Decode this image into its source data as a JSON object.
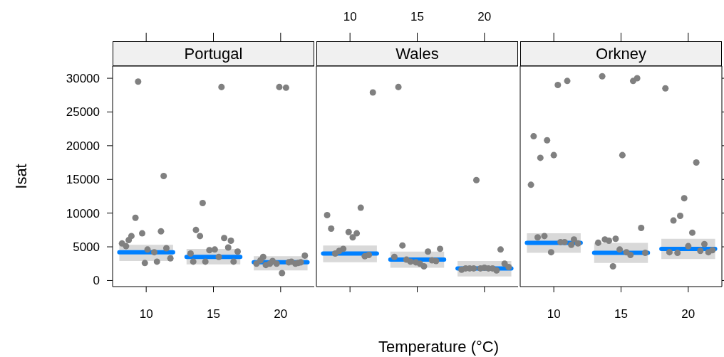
{
  "chart_data": [
    {
      "type": "scatter",
      "title": "Portugal",
      "ylabel": "Isat",
      "xlim": [
        7.5,
        22.5
      ],
      "xticks": [
        10,
        15,
        20
      ],
      "ylim": [
        -900,
        31800
      ],
      "yticks": [
        0,
        5000,
        10000,
        15000,
        20000,
        25000,
        30000
      ],
      "series": [
        {
          "type": "scatter",
          "marker": "circle",
          "color": "#808080",
          "x": [
            9.4,
            8.2,
            8.5,
            8.7,
            8.9,
            9.2,
            9.7,
            9.9,
            10.1,
            10.6,
            10.8,
            11.1,
            11.3,
            11.5,
            11.8,
            13.3,
            13.5,
            13.7,
            14.0,
            14.2,
            14.4,
            14.7,
            15.1,
            15.4,
            15.6,
            15.8,
            16.1,
            16.3,
            16.5,
            16.8,
            18.2,
            18.5,
            18.7,
            18.9,
            19.2,
            19.4,
            19.7,
            19.9,
            20.1,
            20.4,
            20.6,
            20.8,
            21.1,
            21.3,
            21.5,
            21.8
          ],
          "values": [
            29500,
            5500,
            5100,
            6000,
            6600,
            9300,
            7000,
            2600,
            4600,
            4200,
            2800,
            7300,
            15500,
            4800,
            3300,
            4000,
            2800,
            7500,
            6600,
            11500,
            2800,
            4500,
            4600,
            3500,
            28700,
            6300,
            4900,
            5900,
            2800,
            4300,
            2500,
            3000,
            3500,
            2300,
            2500,
            2900,
            2500,
            28700,
            1100,
            28600,
            2700,
            2800,
            2500,
            2600,
            2700,
            3700
          ]
        },
        {
          "type": "line",
          "color": "#0080ff",
          "x": [
            8,
            12
          ],
          "values": [
            4200,
            4200
          ],
          "lower": [
            2900,
            2900
          ],
          "upper": [
            5300,
            5300
          ]
        },
        {
          "type": "line",
          "color": "#0080ff",
          "x": [
            13,
            17
          ],
          "values": [
            3500,
            3500
          ],
          "lower": [
            2400,
            2400
          ],
          "upper": [
            4700,
            4700
          ]
        },
        {
          "type": "line",
          "color": "#0080ff",
          "x": [
            18,
            22
          ],
          "values": [
            2700,
            2700
          ],
          "lower": [
            1500,
            1500
          ],
          "upper": [
            3600,
            3600
          ]
        }
      ]
    },
    {
      "type": "scatter",
      "title": "Wales",
      "xlabel": "Temperature (°C)",
      "xlim": [
        7.5,
        22.5
      ],
      "xticks": [
        10,
        15,
        20
      ],
      "ylim": [
        -900,
        31800
      ],
      "yticks": [
        0,
        5000,
        10000,
        15000,
        20000,
        25000,
        30000
      ],
      "tick_labels": "x",
      "series": [
        {
          "type": "scatter",
          "marker": "circle",
          "color": "#808080",
          "x": [
            8.3,
            8.6,
            8.9,
            9.2,
            9.5,
            9.9,
            10.2,
            10.5,
            10.8,
            11.1,
            11.4,
            11.7,
            13.3,
            13.6,
            13.9,
            14.2,
            14.5,
            14.9,
            15.2,
            15.5,
            15.8,
            16.1,
            16.4,
            16.7,
            18.3,
            18.6,
            18.9,
            19.2,
            19.4,
            19.7,
            20.0,
            20.3,
            20.6,
            20.9,
            21.2,
            21.5,
            21.8
          ],
          "values": [
            9700,
            7700,
            4000,
            4400,
            4700,
            7200,
            6400,
            7000,
            10800,
            3600,
            3800,
            27900,
            3500,
            28700,
            5200,
            3100,
            2800,
            2700,
            2500,
            2100,
            4300,
            3000,
            2900,
            4700,
            1600,
            1800,
            1800,
            1800,
            14900,
            1800,
            1900,
            1800,
            1800,
            1500,
            4600,
            2500,
            2000
          ]
        },
        {
          "type": "line",
          "color": "#0080ff",
          "x": [
            8,
            12
          ],
          "values": [
            4000,
            4000
          ],
          "lower": [
            2700,
            2700
          ],
          "upper": [
            5200,
            5200
          ]
        },
        {
          "type": "line",
          "color": "#0080ff",
          "x": [
            13,
            17
          ],
          "values": [
            3100,
            3100
          ],
          "lower": [
            1900,
            1900
          ],
          "upper": [
            4300,
            4300
          ]
        },
        {
          "type": "line",
          "color": "#0080ff",
          "x": [
            18,
            22
          ],
          "values": [
            1800,
            1800
          ],
          "lower": [
            600,
            600
          ],
          "upper": [
            2900,
            2900
          ]
        }
      ]
    },
    {
      "type": "scatter",
      "title": "Orkney",
      "xlim": [
        7.5,
        22.5
      ],
      "xticks": [
        10,
        15,
        20
      ],
      "ylim": [
        -900,
        31800
      ],
      "yticks": [
        0,
        5000,
        10000,
        15000,
        20000,
        25000,
        30000
      ],
      "tick_labels": "x",
      "series": [
        {
          "type": "scatter",
          "marker": "circle",
          "color": "#808080",
          "x": [
            8.3,
            8.5,
            8.8,
            9.0,
            9.3,
            9.5,
            9.8,
            10.0,
            10.3,
            10.5,
            10.8,
            11.0,
            11.3,
            11.5,
            11.8,
            13.3,
            13.6,
            13.8,
            14.1,
            14.4,
            14.6,
            14.9,
            15.1,
            15.4,
            15.7,
            15.9,
            16.2,
            16.5,
            16.8,
            18.3,
            18.6,
            18.9,
            19.2,
            19.4,
            19.7,
            20.0,
            20.3,
            20.6,
            20.9,
            21.2,
            21.5,
            21.8
          ],
          "values": [
            14200,
            21400,
            6400,
            18200,
            6600,
            20800,
            4200,
            18600,
            29000,
            5700,
            5700,
            29600,
            5300,
            6100,
            5500,
            5600,
            30300,
            6100,
            5900,
            2100,
            6200,
            4600,
            18600,
            4200,
            3800,
            29600,
            30000,
            7800,
            4100,
            28500,
            4200,
            8900,
            4100,
            9600,
            12200,
            5100,
            7100,
            17500,
            4400,
            5400,
            4200,
            4500
          ]
        },
        {
          "type": "line",
          "color": "#0080ff",
          "x": [
            8,
            12
          ],
          "values": [
            5600,
            5600
          ],
          "lower": [
            4100,
            4100
          ],
          "upper": [
            7000,
            7000
          ]
        },
        {
          "type": "line",
          "color": "#0080ff",
          "x": [
            13,
            17
          ],
          "values": [
            4100,
            4100
          ],
          "lower": [
            2600,
            2600
          ],
          "upper": [
            5600,
            5600
          ]
        },
        {
          "type": "line",
          "color": "#0080ff",
          "x": [
            18,
            22
          ],
          "values": [
            4700,
            4700
          ],
          "lower": [
            3200,
            3200
          ],
          "upper": [
            6200,
            6200
          ]
        }
      ]
    }
  ]
}
